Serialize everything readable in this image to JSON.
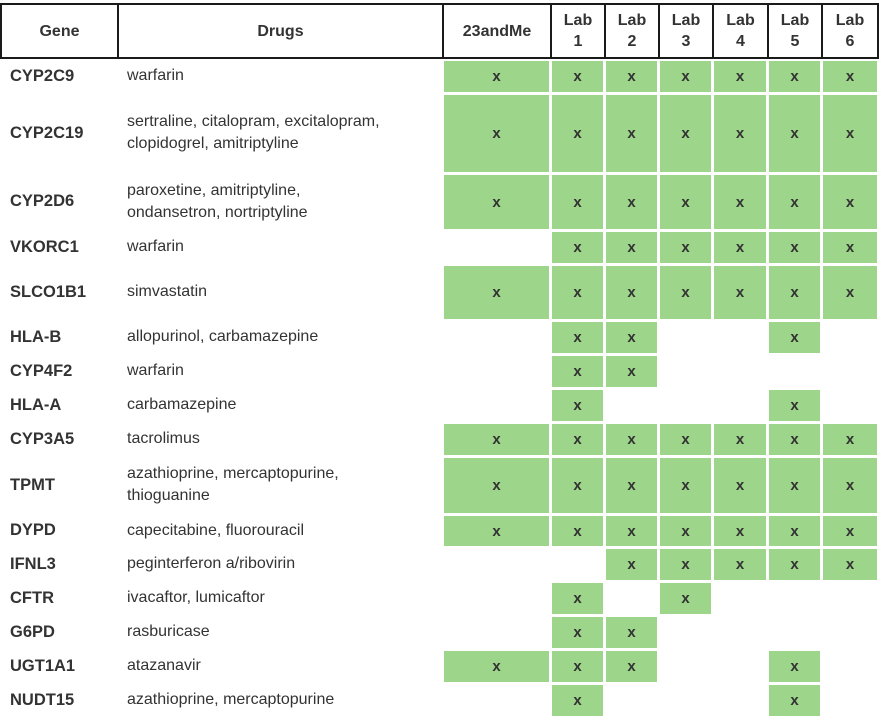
{
  "header": {
    "gene": "Gene",
    "drugs": "Drugs",
    "sources": [
      {
        "top": "23andMe",
        "bottom": ""
      },
      {
        "top": "Lab",
        "bottom": "1"
      },
      {
        "top": "Lab",
        "bottom": "2"
      },
      {
        "top": "Lab",
        "bottom": "3"
      },
      {
        "top": "Lab",
        "bottom": "4"
      },
      {
        "top": "Lab",
        "bottom": "5"
      },
      {
        "top": "Lab",
        "bottom": "6"
      }
    ]
  },
  "mark": "x",
  "colors": {
    "covered": "#9dd58a",
    "border": "#1a1a1a"
  },
  "rows": [
    {
      "gene": "CYP2C9",
      "drugs": "warfarin",
      "marks": [
        1,
        1,
        1,
        1,
        1,
        1,
        1
      ]
    },
    {
      "gene": "CYP2C19",
      "drugs": "sertraline, citalopram, excitalopram,\nclopidogrel, amitriptyline",
      "marks": [
        1,
        1,
        1,
        1,
        1,
        1,
        1
      ]
    },
    {
      "gene": "CYP2D6",
      "drugs": "paroxetine, amitriptyline,\nondansetron, nortriptyline",
      "marks": [
        1,
        1,
        1,
        1,
        1,
        1,
        1
      ]
    },
    {
      "gene": "VKORC1",
      "drugs": "warfarin",
      "marks": [
        0,
        1,
        1,
        1,
        1,
        1,
        1
      ]
    },
    {
      "gene": "SLCO1B1",
      "drugs": "simvastatin",
      "marks": [
        1,
        1,
        1,
        1,
        1,
        1,
        1
      ]
    },
    {
      "gene": "HLA-B",
      "drugs": "allopurinol, carbamazepine",
      "marks": [
        0,
        1,
        1,
        0,
        0,
        1,
        0
      ]
    },
    {
      "gene": "CYP4F2",
      "drugs": "warfarin",
      "marks": [
        0,
        1,
        1,
        0,
        0,
        0,
        0
      ]
    },
    {
      "gene": "HLA-A",
      "drugs": "carbamazepine",
      "marks": [
        0,
        1,
        0,
        0,
        0,
        1,
        0
      ]
    },
    {
      "gene": "CYP3A5",
      "drugs": "tacrolimus",
      "marks": [
        1,
        1,
        1,
        1,
        1,
        1,
        1
      ]
    },
    {
      "gene": "TPMT",
      "drugs": "azathioprine, mercaptopurine,\nthioguanine",
      "marks": [
        1,
        1,
        1,
        1,
        1,
        1,
        1
      ]
    },
    {
      "gene": "DYPD",
      "drugs": "capecitabine, fluorouracil",
      "marks": [
        1,
        1,
        1,
        1,
        1,
        1,
        1
      ]
    },
    {
      "gene": "IFNL3",
      "drugs": "peginterferon a/ribovirin",
      "marks": [
        0,
        0,
        1,
        1,
        1,
        1,
        1
      ]
    },
    {
      "gene": "CFTR",
      "drugs": "ivacaftor, lumicaftor",
      "marks": [
        0,
        1,
        0,
        1,
        0,
        0,
        0
      ]
    },
    {
      "gene": "G6PD",
      "drugs": "rasburicase",
      "marks": [
        0,
        1,
        1,
        0,
        0,
        0,
        0
      ]
    },
    {
      "gene": "UGT1A1",
      "drugs": "atazanavir",
      "marks": [
        1,
        1,
        1,
        0,
        0,
        1,
        0
      ]
    },
    {
      "gene": "NUDT15",
      "drugs": "azathioprine, mercaptopurine",
      "marks": [
        0,
        1,
        0,
        0,
        0,
        1,
        0
      ]
    }
  ]
}
